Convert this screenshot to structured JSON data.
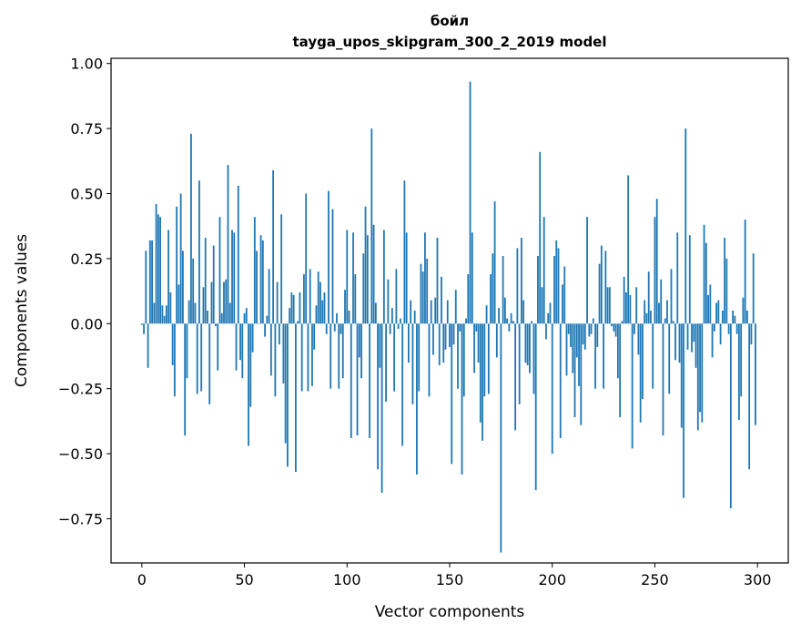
{
  "chart_data": {
    "type": "bar",
    "title": "бойл",
    "subtitle": "tayga_upos_skipgram_300_2_2019 model",
    "xlabel": "Vector components",
    "ylabel": "Components values",
    "xlim": [
      -15,
      315
    ],
    "ylim": [
      -0.92,
      1.02
    ],
    "xticks": [
      0,
      50,
      100,
      150,
      200,
      250,
      300
    ],
    "yticks": [
      -0.75,
      -0.5,
      -0.25,
      0.0,
      0.25,
      0.5,
      0.75,
      1.0
    ],
    "ytick_labels": [
      "−0.75",
      "−0.50",
      "−0.25",
      "0.00",
      "0.25",
      "0.50",
      "0.75",
      "1.00"
    ],
    "grid": false,
    "color": "#1f77b4",
    "values": [
      -0.005,
      -0.04,
      0.28,
      -0.17,
      0.32,
      0.32,
      0.08,
      0.46,
      0.42,
      0.41,
      0.07,
      0.03,
      0.07,
      0.36,
      0.12,
      -0.16,
      -0.28,
      0.45,
      0.15,
      0.5,
      0.28,
      -0.43,
      -0.21,
      0.09,
      0.73,
      0.25,
      0.08,
      -0.27,
      0.55,
      -0.26,
      0.14,
      0.33,
      0.05,
      -0.31,
      0.16,
      0.3,
      -0.01,
      -0.18,
      0.41,
      0.04,
      0.16,
      0.17,
      0.61,
      0.08,
      0.36,
      0.35,
      -0.18,
      0.53,
      -0.14,
      -0.21,
      0.04,
      0.06,
      -0.47,
      -0.32,
      -0.11,
      0.41,
      0.28,
      0.0,
      0.34,
      0.32,
      -0.05,
      0.03,
      0.21,
      -0.2,
      0.59,
      -0.28,
      0.16,
      -0.08,
      0.42,
      -0.23,
      -0.46,
      -0.55,
      0.06,
      0.12,
      0.11,
      -0.57,
      0.01,
      0.12,
      -0.26,
      0.19,
      0.5,
      -0.26,
      0.21,
      -0.24,
      -0.1,
      0.07,
      0.2,
      0.16,
      0.09,
      0.12,
      -0.04,
      0.51,
      -0.25,
      0.44,
      -0.03,
      0.04,
      -0.25,
      -0.04,
      -0.21,
      0.13,
      0.36,
      0.05,
      -0.44,
      0.35,
      0.19,
      -0.43,
      -0.13,
      -0.21,
      0.27,
      0.45,
      0.34,
      -0.44,
      0.75,
      0.38,
      0.08,
      -0.56,
      -0.17,
      -0.65,
      0.36,
      -0.3,
      0.17,
      -0.04,
      0.06,
      -0.26,
      0.21,
      -0.02,
      0.02,
      -0.47,
      0.55,
      0.35,
      -0.15,
      0.09,
      -0.31,
      0.05,
      -0.58,
      -0.26,
      0.23,
      0.2,
      0.35,
      0.25,
      -0.28,
      0.09,
      -0.12,
      0.1,
      0.33,
      -0.16,
      0.18,
      -0.15,
      -0.1,
      0.09,
      -0.09,
      -0.54,
      -0.08,
      0.13,
      -0.25,
      -0.03,
      -0.58,
      -0.28,
      0.02,
      0.19,
      0.93,
      0.35,
      -0.19,
      -0.03,
      -0.15,
      -0.38,
      -0.45,
      -0.28,
      0.07,
      -0.27,
      0.19,
      0.27,
      0.47,
      -0.13,
      0.06,
      -0.88,
      0.26,
      0.1,
      0.02,
      -0.03,
      0.04,
      0.01,
      -0.41,
      0.29,
      -0.31,
      0.33,
      0.09,
      -0.15,
      -0.16,
      -0.19,
      0.01,
      -0.27,
      -0.64,
      0.26,
      0.66,
      0.14,
      0.41,
      -0.06,
      0.04,
      0.08,
      -0.5,
      0.26,
      0.32,
      0.29,
      -0.44,
      0.15,
      0.22,
      -0.2,
      -0.04,
      -0.09,
      -0.19,
      -0.36,
      -0.13,
      -0.24,
      -0.39,
      -0.08,
      -0.1,
      0.41,
      -0.05,
      -0.04,
      0.02,
      -0.25,
      -0.09,
      0.23,
      0.3,
      -0.25,
      0.28,
      0.14,
      0.14,
      -0.01,
      -0.03,
      -0.05,
      -0.21,
      -0.36,
      0.01,
      0.18,
      0.12,
      0.57,
      0.11,
      -0.48,
      -0.04,
      0.14,
      -0.12,
      -0.38,
      -0.29,
      0.09,
      0.04,
      0.2,
      0.05,
      -0.25,
      0.41,
      0.48,
      0.08,
      0.17,
      -0.43,
      0.02,
      0.09,
      -0.27,
      0.21,
      0.01,
      -0.14,
      0.35,
      -0.15,
      -0.4,
      -0.67,
      0.75,
      -0.1,
      0.34,
      -0.11,
      -0.07,
      -0.17,
      -0.41,
      -0.34,
      -0.38,
      0.38,
      0.31,
      0.11,
      0.15,
      -0.13,
      -0.03,
      0.08,
      0.09,
      -0.08,
      0.05,
      0.33,
      0.25,
      -0.04,
      -0.71,
      0.05,
      0.03,
      -0.04,
      -0.37,
      -0.28,
      0.1,
      0.4,
      0.05,
      -0.56,
      -0.08,
      0.27,
      -0.39
    ]
  }
}
